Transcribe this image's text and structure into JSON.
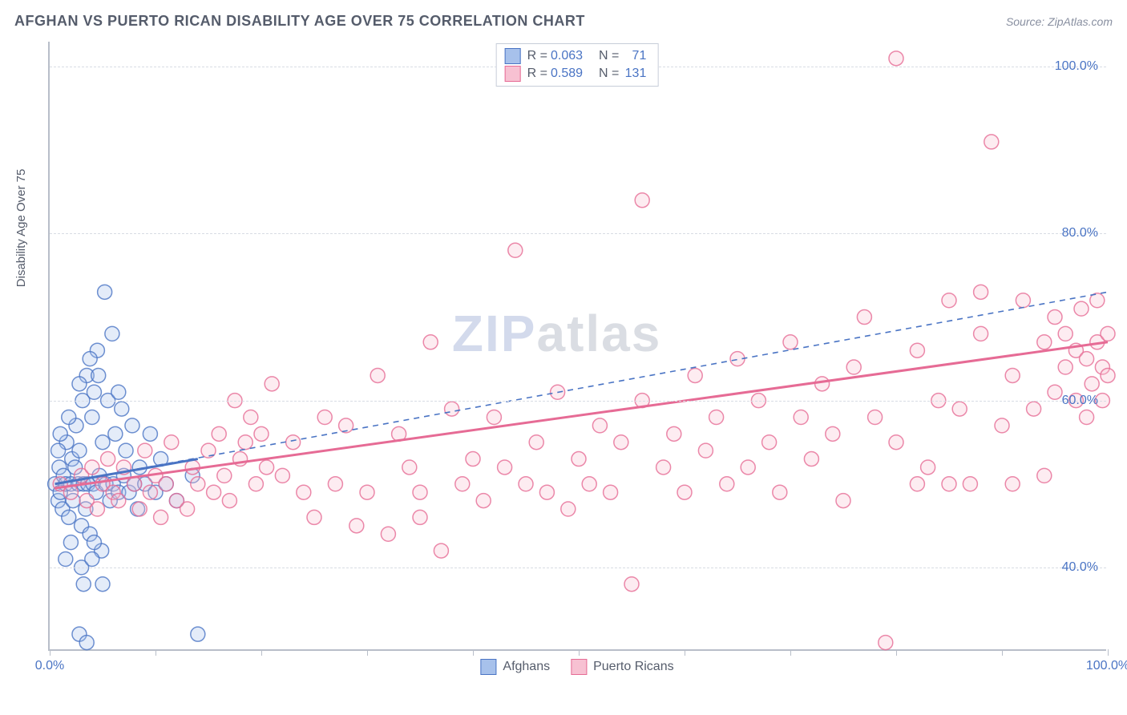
{
  "title": "AFGHAN VS PUERTO RICAN DISABILITY AGE OVER 75 CORRELATION CHART",
  "source_label": "Source: ZipAtlas.com",
  "y_axis_title": "Disability Age Over 75",
  "watermark": {
    "part1": "ZIP",
    "part2": "atlas"
  },
  "chart": {
    "type": "scatter",
    "background_color": "#ffffff",
    "grid_color": "#d8dce4",
    "axis_color": "#b8bec9",
    "label_color": "#4a74c4",
    "xlim": [
      0,
      100
    ],
    "ylim": [
      30,
      103
    ],
    "x_ticks": [
      0,
      10,
      20,
      30,
      40,
      50,
      60,
      70,
      80,
      90,
      100
    ],
    "x_tick_labels_shown": {
      "0": "0.0%",
      "100": "100.0%"
    },
    "y_ticks": [
      40,
      60,
      80,
      100
    ],
    "y_tick_labels": [
      "40.0%",
      "60.0%",
      "80.0%",
      "100.0%"
    ],
    "marker_radius": 9,
    "marker_stroke_width": 1.5,
    "marker_fill_opacity": 0.3,
    "series": [
      {
        "name": "Afghans",
        "color_stroke": "#4a74c4",
        "color_fill": "#a7c1eb",
        "R": "0.063",
        "N": "71",
        "trend_solid": {
          "x1": 0.5,
          "y1": 50,
          "x2": 14,
          "y2": 53,
          "width": 3
        },
        "trend_dashed": {
          "x1": 0.5,
          "y1": 50,
          "x2": 100,
          "y2": 73,
          "width": 1.6,
          "dash": "7 6"
        },
        "points": [
          [
            0.5,
            50
          ],
          [
            0.8,
            48
          ],
          [
            0.9,
            52
          ],
          [
            1.0,
            49
          ],
          [
            1.2,
            47
          ],
          [
            1.3,
            51
          ],
          [
            1.5,
            50
          ],
          [
            1.6,
            55
          ],
          [
            1.8,
            46
          ],
          [
            2.0,
            50
          ],
          [
            2.1,
            53
          ],
          [
            2.2,
            48
          ],
          [
            2.4,
            52
          ],
          [
            2.5,
            57
          ],
          [
            2.7,
            50
          ],
          [
            2.8,
            54
          ],
          [
            3.0,
            45
          ],
          [
            3.1,
            60
          ],
          [
            3.2,
            50
          ],
          [
            3.4,
            47
          ],
          [
            3.5,
            63
          ],
          [
            3.6,
            50
          ],
          [
            3.8,
            44
          ],
          [
            4.0,
            58
          ],
          [
            4.1,
            50
          ],
          [
            4.2,
            61
          ],
          [
            4.4,
            49
          ],
          [
            4.5,
            66
          ],
          [
            4.7,
            51
          ],
          [
            4.9,
            42
          ],
          [
            5.0,
            55
          ],
          [
            5.2,
            73
          ],
          [
            5.3,
            50
          ],
          [
            5.5,
            60
          ],
          [
            5.7,
            48
          ],
          [
            5.9,
            68
          ],
          [
            6.0,
            50
          ],
          [
            6.2,
            56
          ],
          [
            6.5,
            49
          ],
          [
            6.8,
            59
          ],
          [
            7.0,
            51
          ],
          [
            7.2,
            54
          ],
          [
            7.5,
            49
          ],
          [
            7.8,
            57
          ],
          [
            8.0,
            50
          ],
          [
            8.3,
            47
          ],
          [
            8.5,
            52
          ],
          [
            9.0,
            50
          ],
          [
            9.5,
            56
          ],
          [
            10.0,
            49
          ],
          [
            10.5,
            53
          ],
          [
            11.0,
            50
          ],
          [
            12.0,
            48
          ],
          [
            13.5,
            51
          ],
          [
            3.0,
            40
          ],
          [
            3.2,
            38
          ],
          [
            2.8,
            32
          ],
          [
            3.5,
            31
          ],
          [
            14.0,
            32
          ],
          [
            4.0,
            41
          ],
          [
            4.2,
            43
          ],
          [
            5.0,
            38
          ],
          [
            2.0,
            43
          ],
          [
            1.5,
            41
          ],
          [
            6.5,
            61
          ],
          [
            2.8,
            62
          ],
          [
            3.8,
            65
          ],
          [
            1.8,
            58
          ],
          [
            1.0,
            56
          ],
          [
            0.8,
            54
          ],
          [
            4.6,
            63
          ]
        ]
      },
      {
        "name": "Puerto Ricans",
        "color_stroke": "#e66b95",
        "color_fill": "#f7c1d2",
        "R": "0.589",
        "N": "131",
        "trend_solid": {
          "x1": 0.5,
          "y1": 49.5,
          "x2": 100,
          "y2": 67,
          "width": 3
        },
        "points": [
          [
            1,
            50
          ],
          [
            2,
            49
          ],
          [
            3,
            51
          ],
          [
            3.5,
            48
          ],
          [
            4,
            52
          ],
          [
            4.5,
            47
          ],
          [
            5,
            50
          ],
          [
            5.5,
            53
          ],
          [
            6,
            49
          ],
          [
            6.5,
            48
          ],
          [
            7,
            52
          ],
          [
            8,
            50
          ],
          [
            8.5,
            47
          ],
          [
            9,
            54
          ],
          [
            9.5,
            49
          ],
          [
            10,
            51
          ],
          [
            10.5,
            46
          ],
          [
            11,
            50
          ],
          [
            11.5,
            55
          ],
          [
            12,
            48
          ],
          [
            13,
            47
          ],
          [
            13.5,
            52
          ],
          [
            14,
            50
          ],
          [
            15,
            54
          ],
          [
            15.5,
            49
          ],
          [
            16,
            56
          ],
          [
            16.5,
            51
          ],
          [
            17,
            48
          ],
          [
            17.5,
            60
          ],
          [
            18,
            53
          ],
          [
            18.5,
            55
          ],
          [
            19,
            58
          ],
          [
            19.5,
            50
          ],
          [
            20,
            56
          ],
          [
            20.5,
            52
          ],
          [
            21,
            62
          ],
          [
            22,
            51
          ],
          [
            23,
            55
          ],
          [
            24,
            49
          ],
          [
            25,
            46
          ],
          [
            26,
            58
          ],
          [
            27,
            50
          ],
          [
            28,
            57
          ],
          [
            29,
            45
          ],
          [
            30,
            49
          ],
          [
            31,
            63
          ],
          [
            32,
            44
          ],
          [
            33,
            56
          ],
          [
            34,
            52
          ],
          [
            35,
            49
          ],
          [
            35,
            46
          ],
          [
            36,
            67
          ],
          [
            37,
            42
          ],
          [
            38,
            59
          ],
          [
            39,
            50
          ],
          [
            40,
            53
          ],
          [
            41,
            48
          ],
          [
            42,
            58
          ],
          [
            43,
            52
          ],
          [
            44,
            78
          ],
          [
            45,
            50
          ],
          [
            46,
            55
          ],
          [
            47,
            49
          ],
          [
            48,
            61
          ],
          [
            49,
            47
          ],
          [
            50,
            53
          ],
          [
            51,
            50
          ],
          [
            52,
            57
          ],
          [
            53,
            49
          ],
          [
            54,
            55
          ],
          [
            55,
            38
          ],
          [
            56,
            60
          ],
          [
            56,
            84
          ],
          [
            58,
            52
          ],
          [
            59,
            56
          ],
          [
            60,
            49
          ],
          [
            61,
            63
          ],
          [
            62,
            54
          ],
          [
            63,
            58
          ],
          [
            64,
            50
          ],
          [
            65,
            65
          ],
          [
            66,
            52
          ],
          [
            67,
            60
          ],
          [
            68,
            55
          ],
          [
            69,
            49
          ],
          [
            70,
            67
          ],
          [
            71,
            58
          ],
          [
            72,
            53
          ],
          [
            73,
            62
          ],
          [
            74,
            56
          ],
          [
            75,
            48
          ],
          [
            76,
            64
          ],
          [
            77,
            70
          ],
          [
            78,
            58
          ],
          [
            79,
            31
          ],
          [
            80,
            55
          ],
          [
            80,
            101
          ],
          [
            82,
            66
          ],
          [
            83,
            52
          ],
          [
            84,
            60
          ],
          [
            85,
            72
          ],
          [
            86,
            59
          ],
          [
            87,
            50
          ],
          [
            88,
            68
          ],
          [
            89,
            91
          ],
          [
            90,
            57
          ],
          [
            91,
            63
          ],
          [
            92,
            72
          ],
          [
            93,
            59
          ],
          [
            94,
            67
          ],
          [
            95,
            61
          ],
          [
            95,
            70
          ],
          [
            96,
            64
          ],
          [
            96,
            68
          ],
          [
            97,
            60
          ],
          [
            97,
            66
          ],
          [
            97.5,
            71
          ],
          [
            98,
            58
          ],
          [
            98,
            65
          ],
          [
            98.5,
            62
          ],
          [
            99,
            67
          ],
          [
            99,
            72
          ],
          [
            99.5,
            60
          ],
          [
            99.5,
            64
          ],
          [
            100,
            63
          ],
          [
            100,
            68
          ],
          [
            94,
            51
          ],
          [
            91,
            50
          ],
          [
            88,
            73
          ],
          [
            85,
            50
          ],
          [
            82,
            50
          ]
        ]
      }
    ]
  },
  "legend_top": {
    "rows": [
      {
        "swatch_stroke": "#4a74c4",
        "swatch_fill": "#a7c1eb",
        "r_label": "R =",
        "r_val": "0.063",
        "n_label": "N =",
        "n_val": "71"
      },
      {
        "swatch_stroke": "#e66b95",
        "swatch_fill": "#f7c1d2",
        "r_label": "R =",
        "r_val": "0.589",
        "n_label": "N =",
        "n_val": "131"
      }
    ]
  },
  "legend_bottom": [
    {
      "swatch_stroke": "#4a74c4",
      "swatch_fill": "#a7c1eb",
      "label": "Afghans"
    },
    {
      "swatch_stroke": "#e66b95",
      "swatch_fill": "#f7c1d2",
      "label": "Puerto Ricans"
    }
  ]
}
